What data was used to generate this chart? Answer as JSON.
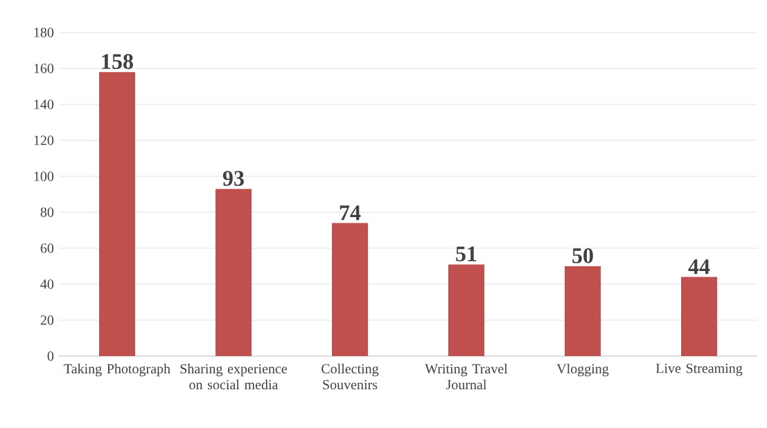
{
  "chart_data": {
    "type": "bar",
    "categories": [
      "Taking Photograph",
      "Sharing experience on social media",
      "Collecting Souvenirs",
      "Writing Travel Journal",
      "Vlogging",
      "Live Streaming"
    ],
    "values": [
      158,
      93,
      74,
      51,
      50,
      44
    ],
    "color": "#c0504d",
    "ylim": [
      0,
      180
    ],
    "yticks": [
      0,
      20,
      40,
      60,
      80,
      100,
      120,
      140,
      160,
      180
    ],
    "grid": "y",
    "data_labels": true
  }
}
